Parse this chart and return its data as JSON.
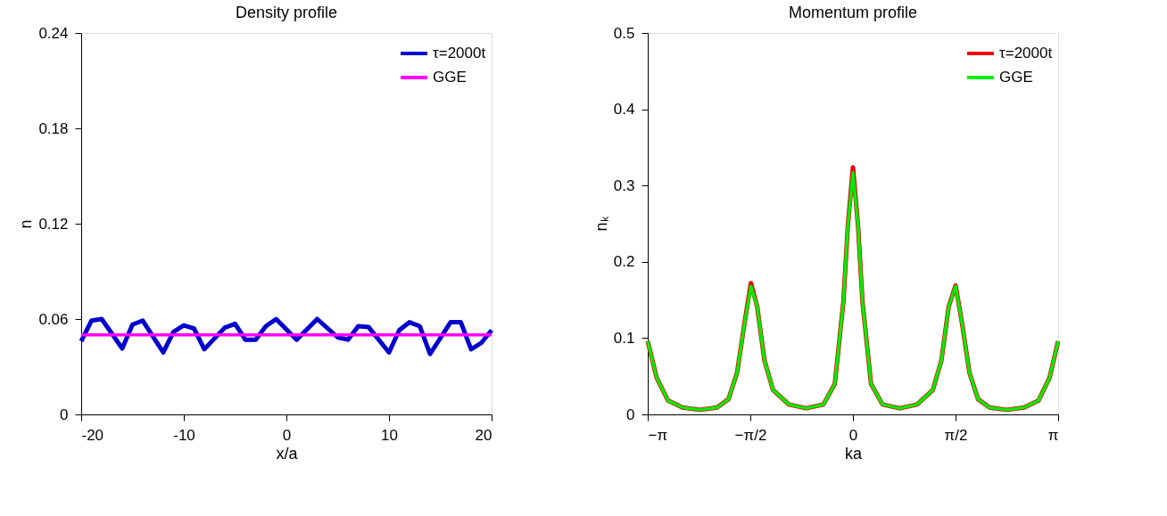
{
  "chart_data": [
    {
      "type": "line",
      "title": "Density profile",
      "xlabel": "x/a",
      "ylabel": "n",
      "xlim": [
        -20,
        20
      ],
      "xticks": [
        -20,
        -10,
        0,
        10,
        20
      ],
      "ylim": [
        0,
        0.24
      ],
      "yticks": [
        0,
        0.06,
        0.12,
        0.18,
        0.24
      ],
      "grid": false,
      "legend": "top right",
      "marker": "none",
      "line_style": "solid",
      "series": [
        {
          "name": "τ=2000t",
          "color": "#0000cc",
          "x": [
            -20,
            -19,
            -18,
            -16,
            -15,
            -14,
            -12,
            -11,
            -10,
            -9,
            -8,
            -6,
            -5,
            -4,
            -3,
            -2,
            -1,
            1,
            3,
            5,
            6,
            7,
            8,
            10,
            11,
            12,
            13,
            14,
            16,
            17,
            18,
            19,
            20
          ],
          "values": [
            0.046,
            0.059,
            0.06,
            0.0415,
            0.0565,
            0.059,
            0.039,
            0.052,
            0.056,
            0.054,
            0.041,
            0.0546,
            0.057,
            0.047,
            0.047,
            0.0555,
            0.06,
            0.047,
            0.06,
            0.0485,
            0.047,
            0.0555,
            0.055,
            0.039,
            0.053,
            0.058,
            0.0555,
            0.038,
            0.058,
            0.058,
            0.041,
            0.045,
            0.053
          ]
        },
        {
          "name": "GGE",
          "color": "#ff00ff",
          "x": [
            -20,
            20
          ],
          "values": [
            0.05,
            0.05
          ]
        }
      ]
    },
    {
      "type": "line",
      "title": "Momentum profile",
      "xlabel": "ka",
      "ylabel": "nₖ",
      "xlim": [
        -3.14159,
        3.14159
      ],
      "xticks": [
        {
          "value": -3.14159,
          "label": "−π"
        },
        {
          "value": -1.5708,
          "label": "−π/2"
        },
        {
          "value": 0,
          "label": "0"
        },
        {
          "value": 1.5708,
          "label": "π/2"
        },
        {
          "value": 3.14159,
          "label": "π"
        }
      ],
      "ylim": [
        0,
        0.5
      ],
      "yticks": [
        0,
        0.1,
        0.2,
        0.3,
        0.4,
        0.5
      ],
      "grid": false,
      "legend": "top right",
      "marker": "none",
      "line_style": "solid",
      "series": [
        {
          "name": "τ=2000t",
          "color": "#ee0000",
          "x": [
            -3.14159,
            -3.005,
            -2.83,
            -2.61,
            -2.345,
            -2.08,
            -1.905,
            -1.773,
            -1.663,
            -1.562,
            -1.465,
            -1.355,
            -1.223,
            -0.981,
            -0.717,
            -0.453,
            -0.277,
            -0.145,
            -0.079,
            0,
            0.079,
            0.145,
            0.277,
            0.453,
            0.717,
            0.981,
            1.223,
            1.355,
            1.465,
            1.572,
            1.673,
            1.783,
            1.915,
            2.09,
            2.355,
            2.62,
            2.84,
            3.01,
            3.14159
          ],
          "values": [
            0.096,
            0.048,
            0.018,
            0.009,
            0.006,
            0.009,
            0.02,
            0.055,
            0.118,
            0.172,
            0.141,
            0.071,
            0.032,
            0.013,
            0.008,
            0.013,
            0.04,
            0.149,
            0.246,
            0.324,
            0.246,
            0.149,
            0.04,
            0.013,
            0.008,
            0.013,
            0.032,
            0.071,
            0.141,
            0.169,
            0.118,
            0.055,
            0.02,
            0.009,
            0.006,
            0.009,
            0.018,
            0.048,
            0.096
          ]
        },
        {
          "name": "GGE",
          "color": "#00ee00",
          "x": [
            -3.14159,
            -3.005,
            -2.83,
            -2.61,
            -2.345,
            -2.08,
            -1.905,
            -1.773,
            -1.663,
            -1.562,
            -1.465,
            -1.355,
            -1.223,
            -0.981,
            -0.717,
            -0.453,
            -0.277,
            -0.145,
            -0.079,
            0,
            0.079,
            0.145,
            0.277,
            0.453,
            0.717,
            0.981,
            1.223,
            1.355,
            1.465,
            1.572,
            1.673,
            1.783,
            1.915,
            2.09,
            2.355,
            2.62,
            2.84,
            3.01,
            3.14159
          ],
          "values": [
            0.096,
            0.048,
            0.018,
            0.009,
            0.006,
            0.009,
            0.02,
            0.055,
            0.118,
            0.168,
            0.141,
            0.071,
            0.032,
            0.013,
            0.008,
            0.013,
            0.04,
            0.149,
            0.246,
            0.317,
            0.246,
            0.149,
            0.04,
            0.013,
            0.008,
            0.013,
            0.032,
            0.071,
            0.141,
            0.168,
            0.118,
            0.055,
            0.02,
            0.009,
            0.006,
            0.009,
            0.018,
            0.048,
            0.096
          ]
        }
      ]
    }
  ]
}
